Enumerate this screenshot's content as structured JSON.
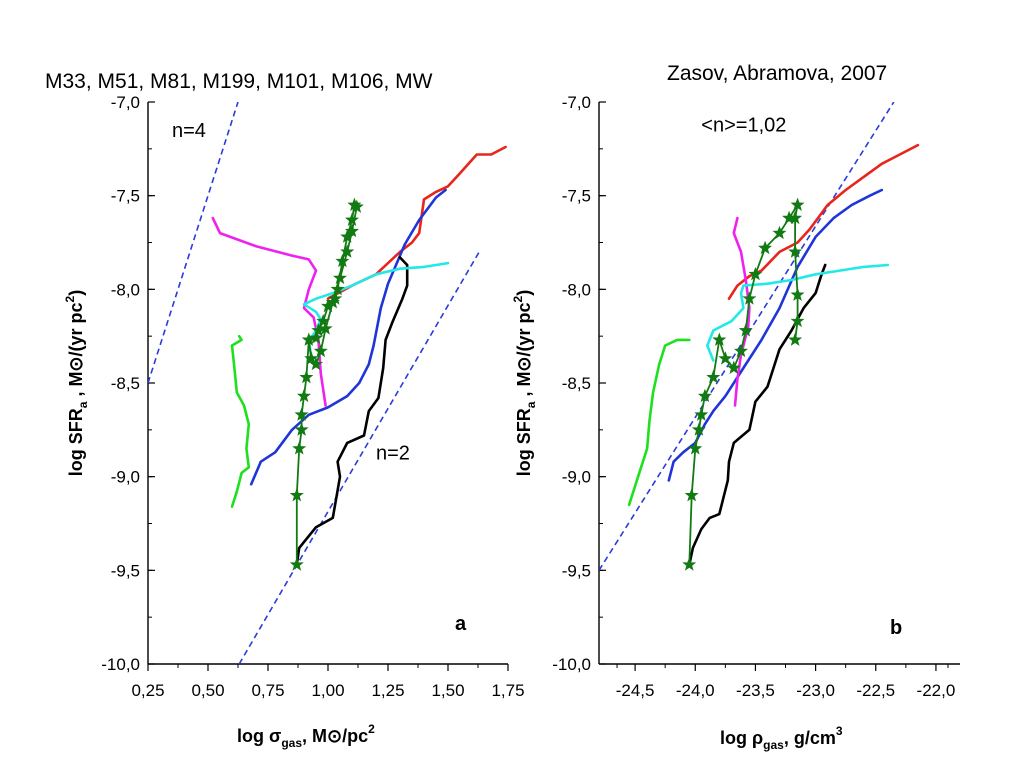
{
  "header": {
    "left_title": "M33, M51, M81, M199, M101, M106, MW",
    "right_title": "Zasov, Abramova, 2007"
  },
  "chart_data": [
    {
      "panel": "a",
      "type": "line",
      "panel_label": "a",
      "xlim": [
        0.25,
        1.75
      ],
      "ylim": [
        -10.0,
        -7.0
      ],
      "xticks": [
        "0,25",
        "0,50",
        "0,75",
        "1,00",
        "1,25",
        "1,50",
        "1,75"
      ],
      "yticks": [
        "-7,0",
        "-7,5",
        "-8,0",
        "-8,5",
        "-9,0",
        "-9,5",
        "-10,0"
      ],
      "xlabel": {
        "prefix": "log σ",
        "sub": "gas",
        "suffix": ", M⊙/pc",
        "sup": "2"
      },
      "ylabel": {
        "prefix": "log SFR",
        "sub": "a",
        "suffix": " , M⊙/(yr pc",
        "sup": "2",
        "end": ")"
      },
      "annotations": [
        {
          "text": "n=4",
          "x": 0.35,
          "y": -7.15
        },
        {
          "text": "n=2",
          "x": 1.2,
          "y": -8.87
        }
      ],
      "reference_lines": [
        {
          "label": "n=4",
          "style": "dashed",
          "color": "#2a3bdb",
          "points": [
            [
              0.25,
              -8.5
            ],
            [
              0.625,
              -7.0
            ]
          ]
        },
        {
          "label": "n=2",
          "style": "dashed",
          "color": "#2a3bdb",
          "points": [
            [
              0.63,
              -10.0
            ],
            [
              1.63,
              -7.8
            ]
          ]
        }
      ],
      "series": [
        {
          "color": "#e8241c",
          "marker": "none",
          "points": [
            [
              1.0,
              -8.05
            ],
            [
              1.1,
              -7.98
            ],
            [
              1.2,
              -7.92
            ],
            [
              1.3,
              -7.8
            ],
            [
              1.35,
              -7.75
            ],
            [
              1.38,
              -7.7
            ],
            [
              1.4,
              -7.52
            ],
            [
              1.45,
              -7.48
            ],
            [
              1.5,
              -7.45
            ],
            [
              1.55,
              -7.38
            ],
            [
              1.62,
              -7.28
            ],
            [
              1.68,
              -7.28
            ],
            [
              1.74,
              -7.24
            ]
          ]
        },
        {
          "color": "#1f35d8",
          "marker": "none",
          "points": [
            [
              0.68,
              -9.04
            ],
            [
              0.72,
              -8.92
            ],
            [
              0.78,
              -8.87
            ],
            [
              0.85,
              -8.75
            ],
            [
              0.92,
              -8.67
            ],
            [
              1.0,
              -8.63
            ],
            [
              1.08,
              -8.57
            ],
            [
              1.13,
              -8.5
            ],
            [
              1.17,
              -8.4
            ],
            [
              1.19,
              -8.3
            ],
            [
              1.22,
              -8.1
            ],
            [
              1.25,
              -7.97
            ],
            [
              1.28,
              -7.88
            ],
            [
              1.32,
              -7.76
            ],
            [
              1.38,
              -7.63
            ],
            [
              1.45,
              -7.51
            ],
            [
              1.49,
              -7.47
            ]
          ]
        },
        {
          "color": "#000000",
          "marker": "none",
          "points": [
            [
              0.87,
              -9.47
            ],
            [
              0.88,
              -9.38
            ],
            [
              0.95,
              -9.27
            ],
            [
              1.02,
              -9.22
            ],
            [
              1.05,
              -9.0
            ],
            [
              1.04,
              -8.92
            ],
            [
              1.08,
              -8.82
            ],
            [
              1.15,
              -8.78
            ],
            [
              1.17,
              -8.65
            ],
            [
              1.21,
              -8.58
            ],
            [
              1.23,
              -8.42
            ],
            [
              1.24,
              -8.27
            ],
            [
              1.27,
              -8.17
            ],
            [
              1.31,
              -8.05
            ],
            [
              1.33,
              -7.98
            ],
            [
              1.33,
              -7.87
            ],
            [
              1.3,
              -7.83
            ]
          ]
        },
        {
          "color": "#1ee01e",
          "marker": "none",
          "points": [
            [
              0.6,
              -9.16
            ],
            [
              0.62,
              -9.08
            ],
            [
              0.64,
              -8.98
            ],
            [
              0.67,
              -8.95
            ],
            [
              0.66,
              -8.85
            ],
            [
              0.67,
              -8.72
            ],
            [
              0.65,
              -8.62
            ],
            [
              0.62,
              -8.55
            ],
            [
              0.61,
              -8.42
            ],
            [
              0.6,
              -8.3
            ],
            [
              0.64,
              -8.27
            ],
            [
              0.63,
              -8.25
            ]
          ]
        },
        {
          "color": "#ee22ee",
          "marker": "none",
          "points": [
            [
              0.52,
              -7.62
            ],
            [
              0.55,
              -7.7
            ],
            [
              0.7,
              -7.77
            ],
            [
              0.85,
              -7.82
            ],
            [
              0.92,
              -7.84
            ],
            [
              0.95,
              -7.9
            ],
            [
              0.92,
              -8.0
            ],
            [
              0.9,
              -8.1
            ],
            [
              0.94,
              -8.15
            ],
            [
              0.96,
              -8.27
            ],
            [
              0.97,
              -8.45
            ],
            [
              0.99,
              -8.62
            ]
          ]
        },
        {
          "color": "#23e8e8",
          "marker": "none",
          "points": [
            [
              0.93,
              -8.35
            ],
            [
              0.92,
              -8.28
            ],
            [
              0.95,
              -8.22
            ],
            [
              0.97,
              -8.16
            ],
            [
              0.95,
              -8.12
            ],
            [
              0.9,
              -8.08
            ],
            [
              0.95,
              -8.05
            ],
            [
              1.02,
              -8.02
            ],
            [
              1.1,
              -7.98
            ],
            [
              1.2,
              -7.92
            ],
            [
              1.3,
              -7.89
            ],
            [
              1.4,
              -7.88
            ],
            [
              1.5,
              -7.86
            ]
          ]
        },
        {
          "color": "#127a12",
          "marker": "star",
          "points": [
            [
              0.87,
              -9.47
            ],
            [
              0.87,
              -9.1
            ],
            [
              0.88,
              -8.85
            ],
            [
              0.89,
              -8.75
            ],
            [
              0.89,
              -8.67
            ],
            [
              0.9,
              -8.57
            ],
            [
              0.91,
              -8.47
            ],
            [
              0.92,
              -8.27
            ],
            [
              0.93,
              -8.37
            ],
            [
              0.95,
              -8.4
            ],
            [
              0.97,
              -8.33
            ],
            [
              0.99,
              -8.21
            ],
            [
              1.02,
              -8.07
            ],
            [
              1.05,
              -7.94
            ],
            [
              1.08,
              -7.8
            ],
            [
              1.1,
              -7.69
            ],
            [
              1.12,
              -7.56
            ],
            [
              1.11,
              -7.55
            ],
            [
              1.1,
              -7.63
            ],
            [
              1.08,
              -7.72
            ],
            [
              1.06,
              -7.85
            ],
            [
              1.04,
              -8.0
            ],
            [
              1.03,
              -8.05
            ],
            [
              1.0,
              -8.09
            ],
            [
              0.98,
              -8.17
            ],
            [
              0.96,
              -8.22
            ],
            [
              0.95,
              -8.26
            ]
          ]
        }
      ]
    },
    {
      "panel": "b",
      "type": "line",
      "panel_label": "b",
      "xlim": [
        -24.8,
        -21.8
      ],
      "ylim": [
        -10.0,
        -7.0
      ],
      "xticks": [
        "-24,5",
        "-24,0",
        "-23,5",
        "-23,0",
        "-22,5",
        "-22,0"
      ],
      "yticks": [
        "-7,0",
        "-7,5",
        "-8,0",
        "-8,5",
        "-9,0",
        "-9,5",
        "-10,0"
      ],
      "xlabel": {
        "prefix": "log ρ",
        "sub": "gas",
        "suffix": ", g/cm",
        "sup": "3"
      },
      "ylabel": {
        "prefix": "log SFR",
        "sub": "a",
        "suffix": " , M⊙/(yr pc",
        "sup": "2",
        "end": ")"
      },
      "annotations": [
        {
          "text": "<n>=1,02",
          "x": -23.95,
          "y": -7.12
        }
      ],
      "reference_lines": [
        {
          "label": "<n>=1,02",
          "style": "dashed",
          "color": "#2a3bdb",
          "points": [
            [
              -24.8,
              -9.5
            ],
            [
              -22.35,
              -7.0
            ]
          ]
        }
      ],
      "series": [
        {
          "color": "#e8241c",
          "marker": "none",
          "points": [
            [
              -23.72,
              -8.05
            ],
            [
              -23.65,
              -7.98
            ],
            [
              -23.55,
              -7.93
            ],
            [
              -23.45,
              -7.9
            ],
            [
              -23.3,
              -7.8
            ],
            [
              -23.15,
              -7.75
            ],
            [
              -23.05,
              -7.68
            ],
            [
              -22.9,
              -7.55
            ],
            [
              -22.75,
              -7.47
            ],
            [
              -22.6,
              -7.4
            ],
            [
              -22.45,
              -7.33
            ],
            [
              -22.3,
              -7.28
            ],
            [
              -22.15,
              -7.23
            ]
          ]
        },
        {
          "color": "#1f35d8",
          "marker": "none",
          "points": [
            [
              -24.22,
              -9.02
            ],
            [
              -24.18,
              -8.92
            ],
            [
              -24.1,
              -8.87
            ],
            [
              -24.0,
              -8.82
            ],
            [
              -23.92,
              -8.72
            ],
            [
              -23.85,
              -8.65
            ],
            [
              -23.75,
              -8.57
            ],
            [
              -23.6,
              -8.42
            ],
            [
              -23.45,
              -8.27
            ],
            [
              -23.3,
              -8.1
            ],
            [
              -23.15,
              -7.88
            ],
            [
              -23.0,
              -7.72
            ],
            [
              -22.85,
              -7.62
            ],
            [
              -22.7,
              -7.55
            ],
            [
              -22.55,
              -7.5
            ],
            [
              -22.45,
              -7.47
            ]
          ]
        },
        {
          "color": "#000000",
          "marker": "none",
          "points": [
            [
              -24.05,
              -9.47
            ],
            [
              -24.02,
              -9.38
            ],
            [
              -23.95,
              -9.28
            ],
            [
              -23.88,
              -9.22
            ],
            [
              -23.8,
              -9.2
            ],
            [
              -23.73,
              -9.02
            ],
            [
              -23.72,
              -8.92
            ],
            [
              -23.68,
              -8.82
            ],
            [
              -23.55,
              -8.75
            ],
            [
              -23.5,
              -8.6
            ],
            [
              -23.4,
              -8.52
            ],
            [
              -23.35,
              -8.42
            ],
            [
              -23.3,
              -8.32
            ],
            [
              -23.2,
              -8.22
            ],
            [
              -23.1,
              -8.1
            ],
            [
              -23.0,
              -8.02
            ],
            [
              -22.95,
              -7.92
            ],
            [
              -22.92,
              -7.87
            ]
          ]
        },
        {
          "color": "#1ee01e",
          "marker": "none",
          "points": [
            [
              -24.55,
              -9.15
            ],
            [
              -24.5,
              -9.05
            ],
            [
              -24.45,
              -8.95
            ],
            [
              -24.4,
              -8.85
            ],
            [
              -24.38,
              -8.7
            ],
            [
              -24.35,
              -8.55
            ],
            [
              -24.3,
              -8.4
            ],
            [
              -24.25,
              -8.3
            ],
            [
              -24.15,
              -8.27
            ],
            [
              -24.05,
              -8.27
            ]
          ]
        },
        {
          "color": "#ee22ee",
          "marker": "none",
          "points": [
            [
              -23.65,
              -7.62
            ],
            [
              -23.68,
              -7.7
            ],
            [
              -23.62,
              -7.8
            ],
            [
              -23.58,
              -7.95
            ],
            [
              -23.55,
              -8.1
            ],
            [
              -23.56,
              -8.2
            ],
            [
              -23.62,
              -8.35
            ],
            [
              -23.65,
              -8.48
            ],
            [
              -23.67,
              -8.62
            ]
          ]
        },
        {
          "color": "#23e8e8",
          "marker": "none",
          "points": [
            [
              -23.85,
              -8.38
            ],
            [
              -23.9,
              -8.3
            ],
            [
              -23.85,
              -8.22
            ],
            [
              -23.7,
              -8.17
            ],
            [
              -23.6,
              -8.1
            ],
            [
              -23.62,
              -8.02
            ],
            [
              -23.6,
              -7.98
            ],
            [
              -23.4,
              -7.97
            ],
            [
              -23.2,
              -7.95
            ],
            [
              -23.0,
              -7.92
            ],
            [
              -22.8,
              -7.9
            ],
            [
              -22.6,
              -7.88
            ],
            [
              -22.4,
              -7.87
            ]
          ]
        },
        {
          "color": "#127a12",
          "marker": "star",
          "points": [
            [
              -24.05,
              -9.47
            ],
            [
              -24.03,
              -9.1
            ],
            [
              -24.0,
              -8.85
            ],
            [
              -23.97,
              -8.75
            ],
            [
              -23.95,
              -8.67
            ],
            [
              -23.92,
              -8.57
            ],
            [
              -23.85,
              -8.47
            ],
            [
              -23.8,
              -8.27
            ],
            [
              -23.75,
              -8.37
            ],
            [
              -23.68,
              -8.42
            ],
            [
              -23.62,
              -8.33
            ],
            [
              -23.58,
              -8.22
            ],
            [
              -23.55,
              -8.05
            ],
            [
              -23.5,
              -7.92
            ],
            [
              -23.42,
              -7.78
            ],
            [
              -23.3,
              -7.7
            ],
            [
              -23.22,
              -7.62
            ],
            [
              -23.15,
              -7.55
            ],
            [
              -23.17,
              -7.62
            ],
            [
              -23.17,
              -7.8
            ],
            [
              -23.15,
              -8.03
            ],
            [
              -23.15,
              -8.17
            ],
            [
              -23.17,
              -8.27
            ]
          ]
        }
      ]
    }
  ]
}
